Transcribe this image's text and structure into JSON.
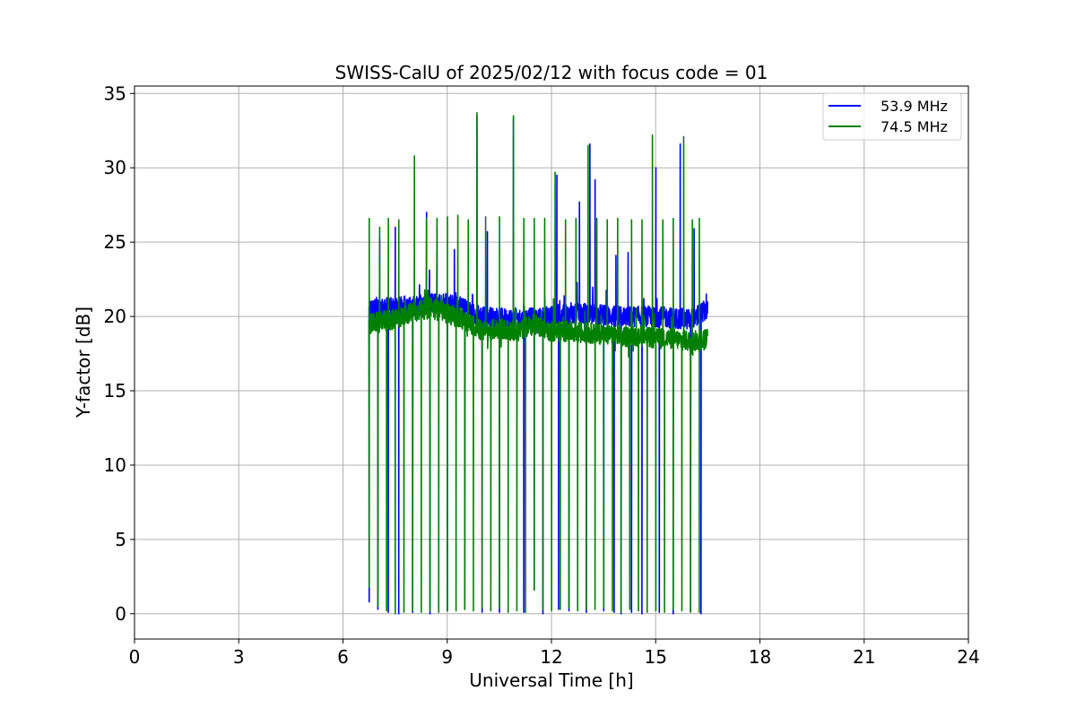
{
  "chart_data": {
    "type": "line",
    "title": "SWISS-CalU of 2025/02/12 with focus code = 01",
    "xlabel": "Universal Time [h]",
    "ylabel": "Y-factor [dB]",
    "xlim": [
      0,
      24
    ],
    "ylim": [
      -1.7,
      35.5
    ],
    "xticks": [
      0,
      3,
      6,
      9,
      12,
      15,
      18,
      21,
      24
    ],
    "yticks": [
      0,
      5,
      10,
      15,
      20,
      25,
      30,
      35
    ],
    "grid": true,
    "legend_position": "top-right",
    "data_start_h": 6.75,
    "data_end_h": 16.5,
    "series": [
      {
        "name": "53.9 MHz",
        "color": "#0000ff",
        "baseline": [
          [
            6.75,
            20.5
          ],
          [
            8.0,
            20.7
          ],
          [
            9.0,
            21.0
          ],
          [
            10.0,
            20.0
          ],
          [
            11.0,
            19.8
          ],
          [
            12.0,
            20.0
          ],
          [
            13.0,
            20.2
          ],
          [
            14.0,
            20.0
          ],
          [
            15.0,
            20.0
          ],
          [
            16.0,
            19.8
          ],
          [
            16.5,
            20.5
          ]
        ],
        "spikes": [
          [
            7.05,
            25.3
          ],
          [
            7.5,
            26.0
          ],
          [
            8.4,
            27.0
          ],
          [
            8.7,
            26.0
          ],
          [
            9.2,
            24.5
          ],
          [
            9.85,
            33.5
          ],
          [
            10.15,
            25.7
          ],
          [
            10.9,
            33.3
          ],
          [
            12.15,
            29.5
          ],
          [
            12.8,
            27.7
          ],
          [
            13.1,
            31.6
          ],
          [
            13.25,
            29.2
          ],
          [
            13.85,
            24.1
          ],
          [
            14.2,
            24.3
          ],
          [
            15.0,
            30.0
          ],
          [
            15.7,
            31.6
          ],
          [
            16.1,
            25.9
          ],
          [
            16.45,
            21.5
          ]
        ],
        "dips": [
          [
            6.75,
            0.8
          ],
          [
            7.0,
            0.3
          ],
          [
            7.3,
            0.1
          ],
          [
            7.6,
            0.0
          ],
          [
            8.0,
            0.1
          ],
          [
            8.5,
            0.0
          ],
          [
            9.0,
            0.2
          ],
          [
            9.5,
            0.3
          ],
          [
            10.0,
            0.1
          ],
          [
            10.5,
            0.1
          ],
          [
            11.2,
            0.1
          ],
          [
            11.5,
            1.6
          ],
          [
            11.75,
            0.0
          ],
          [
            12.2,
            0.3
          ],
          [
            12.5,
            0.2
          ],
          [
            13.0,
            0.1
          ],
          [
            13.5,
            0.2
          ],
          [
            13.8,
            0.1
          ],
          [
            14.0,
            0.0
          ],
          [
            14.3,
            0.1
          ],
          [
            14.6,
            0.0
          ],
          [
            15.1,
            0.1
          ],
          [
            15.5,
            0.0
          ],
          [
            16.0,
            0.2
          ],
          [
            16.3,
            0.0
          ]
        ]
      },
      {
        "name": "74.5 MHz",
        "color": "#008000",
        "baseline": [
          [
            6.75,
            19.5
          ],
          [
            7.5,
            19.8
          ],
          [
            8.0,
            20.3
          ],
          [
            8.5,
            20.6
          ],
          [
            9.0,
            20.2
          ],
          [
            9.5,
            19.8
          ],
          [
            10.0,
            19.0
          ],
          [
            10.5,
            19.2
          ],
          [
            11.0,
            19.0
          ],
          [
            11.5,
            19.5
          ],
          [
            12.0,
            19.0
          ],
          [
            12.5,
            19.0
          ],
          [
            13.0,
            18.9
          ],
          [
            13.5,
            18.8
          ],
          [
            14.0,
            18.6
          ],
          [
            14.5,
            18.7
          ],
          [
            15.0,
            18.5
          ],
          [
            15.5,
            18.5
          ],
          [
            16.0,
            18.3
          ],
          [
            16.5,
            18.5
          ]
        ],
        "spikes": [
          [
            6.75,
            26.6
          ],
          [
            7.05,
            26.0
          ],
          [
            7.3,
            26.6
          ],
          [
            7.6,
            26.5
          ],
          [
            8.05,
            30.8
          ],
          [
            8.4,
            26.6
          ],
          [
            8.7,
            26.6
          ],
          [
            9.0,
            26.7
          ],
          [
            9.3,
            26.8
          ],
          [
            9.6,
            26.5
          ],
          [
            9.85,
            33.7
          ],
          [
            10.1,
            26.7
          ],
          [
            10.5,
            26.7
          ],
          [
            10.9,
            33.5
          ],
          [
            11.2,
            26.6
          ],
          [
            11.5,
            26.6
          ],
          [
            11.8,
            26.6
          ],
          [
            12.1,
            29.7
          ],
          [
            12.4,
            26.5
          ],
          [
            12.7,
            26.6
          ],
          [
            13.05,
            31.5
          ],
          [
            13.3,
            26.6
          ],
          [
            13.6,
            26.5
          ],
          [
            13.9,
            26.6
          ],
          [
            14.3,
            26.5
          ],
          [
            14.6,
            26.5
          ],
          [
            14.9,
            32.2
          ],
          [
            15.2,
            26.5
          ],
          [
            15.5,
            26.6
          ],
          [
            15.8,
            32.1
          ],
          [
            16.05,
            26.5
          ],
          [
            16.25,
            26.6
          ]
        ],
        "dips": [
          [
            6.75,
            1.8
          ],
          [
            7.0,
            0.5
          ],
          [
            7.25,
            0.2
          ],
          [
            7.5,
            0.0
          ],
          [
            7.75,
            0.1
          ],
          [
            8.0,
            0.2
          ],
          [
            8.25,
            0.1
          ],
          [
            8.5,
            0.2
          ],
          [
            8.75,
            0.1
          ],
          [
            9.0,
            0.2
          ],
          [
            9.25,
            0.2
          ],
          [
            9.5,
            0.3
          ],
          [
            9.75,
            0.2
          ],
          [
            10.0,
            0.4
          ],
          [
            10.25,
            0.2
          ],
          [
            10.5,
            0.4
          ],
          [
            10.75,
            0.1
          ],
          [
            11.0,
            0.2
          ],
          [
            11.25,
            0.1
          ],
          [
            11.5,
            1.6
          ],
          [
            11.75,
            0.3
          ],
          [
            12.0,
            0.2
          ],
          [
            12.25,
            0.3
          ],
          [
            12.5,
            0.4
          ],
          [
            12.75,
            0.2
          ],
          [
            13.0,
            0.3
          ],
          [
            13.25,
            0.3
          ],
          [
            13.5,
            0.4
          ],
          [
            13.75,
            0.2
          ],
          [
            14.0,
            0.1
          ],
          [
            14.25,
            0.3
          ],
          [
            14.5,
            0.2
          ],
          [
            14.75,
            0.1
          ],
          [
            15.0,
            0.2
          ],
          [
            15.25,
            0.1
          ],
          [
            15.5,
            0.3
          ],
          [
            15.75,
            0.2
          ],
          [
            16.0,
            0.1
          ],
          [
            16.25,
            0.1
          ]
        ]
      }
    ]
  }
}
